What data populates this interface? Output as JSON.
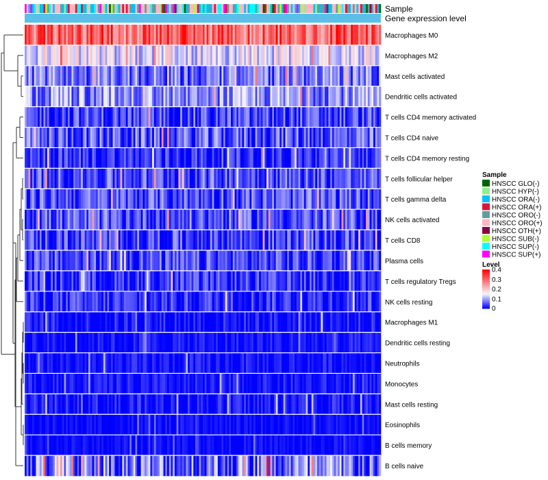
{
  "chart_data": {
    "type": "heatmap",
    "title": "",
    "annotation_tracks": [
      "Sample",
      "Gene expression level"
    ],
    "rows": [
      {
        "label": "Macrophages M0",
        "mean": 0.3,
        "spread": 0.1
      },
      {
        "label": "Macrophages M2",
        "mean": 0.14,
        "spread": 0.07
      },
      {
        "label": "Mast cells activated",
        "mean": 0.07,
        "spread": 0.07
      },
      {
        "label": "Dendritic cells activated",
        "mean": 0.09,
        "spread": 0.07
      },
      {
        "label": "T cells CD4 memory activated",
        "mean": 0.04,
        "spread": 0.06
      },
      {
        "label": "T cells CD4 naive",
        "mean": 0.05,
        "spread": 0.07
      },
      {
        "label": "T cells CD4 memory resting",
        "mean": 0.03,
        "spread": 0.05
      },
      {
        "label": "T cells follicular helper",
        "mean": 0.05,
        "spread": 0.06
      },
      {
        "label": "T cells gamma delta",
        "mean": 0.05,
        "spread": 0.06
      },
      {
        "label": "NK cells activated",
        "mean": 0.05,
        "spread": 0.06
      },
      {
        "label": "T cells CD8",
        "mean": 0.04,
        "spread": 0.06
      },
      {
        "label": "Plasma cells",
        "mean": 0.04,
        "spread": 0.06
      },
      {
        "label": "T cells regulatory  Tregs",
        "mean": 0.03,
        "spread": 0.05
      },
      {
        "label": "NK cells resting",
        "mean": 0.03,
        "spread": 0.05
      },
      {
        "label": "Macrophages M1",
        "mean": 0.01,
        "spread": 0.04
      },
      {
        "label": "Dendritic cells resting",
        "mean": 0.01,
        "spread": 0.03
      },
      {
        "label": "Neutrophils",
        "mean": 0.01,
        "spread": 0.03
      },
      {
        "label": "Monocytes",
        "mean": 0.01,
        "spread": 0.03
      },
      {
        "label": "Mast cells resting",
        "mean": 0.01,
        "spread": 0.04
      },
      {
        "label": "Eosinophils",
        "mean": 0.005,
        "spread": 0.02
      },
      {
        "label": "B cells memory",
        "mean": 0.005,
        "spread": 0.02
      },
      {
        "label": "B cells naive",
        "mean": 0.06,
        "spread": 0.1
      }
    ],
    "n_samples": 190,
    "sample_groups": [
      {
        "name": "HNSCC GLO(-)",
        "color": "#006400"
      },
      {
        "name": "HNSCC HYP(-)",
        "color": "#90ee90"
      },
      {
        "name": "HNSCC ORA(-)",
        "color": "#00bfff"
      },
      {
        "name": "HNSCC ORA(+)",
        "color": "#dc143c"
      },
      {
        "name": "HNSCC ORO(-)",
        "color": "#5f9ea0"
      },
      {
        "name": "HNSCC ORO(+)",
        "color": "#ffb6c1"
      },
      {
        "name": "HNSCC OTH(+)",
        "color": "#8b0045"
      },
      {
        "name": "HNSCC SUB(-)",
        "color": "#adff2f"
      },
      {
        "name": "HNSCC SUP(-)",
        "color": "#00ffff"
      },
      {
        "name": "HNSCC SUP(+)",
        "color": "#ff00ff"
      }
    ],
    "gene_expression_track_color": "#5bc0e8",
    "color_scale": {
      "name": "Level",
      "stops": [
        {
          "value": 0,
          "color": "#0000ff"
        },
        {
          "value": 0.15,
          "color": "#f5f5fa"
        },
        {
          "value": 0.4,
          "color": "#ff0000"
        }
      ],
      "ticks": [
        0.4,
        0.3,
        0.2,
        0.1,
        0
      ],
      "tick_labels": [
        "0.4",
        "0.3",
        "0.2",
        "0.1",
        "0"
      ]
    },
    "legend": {
      "sample_title": "Sample",
      "level_title": "Level",
      "position": "right"
    },
    "dendrogram": "rows"
  }
}
